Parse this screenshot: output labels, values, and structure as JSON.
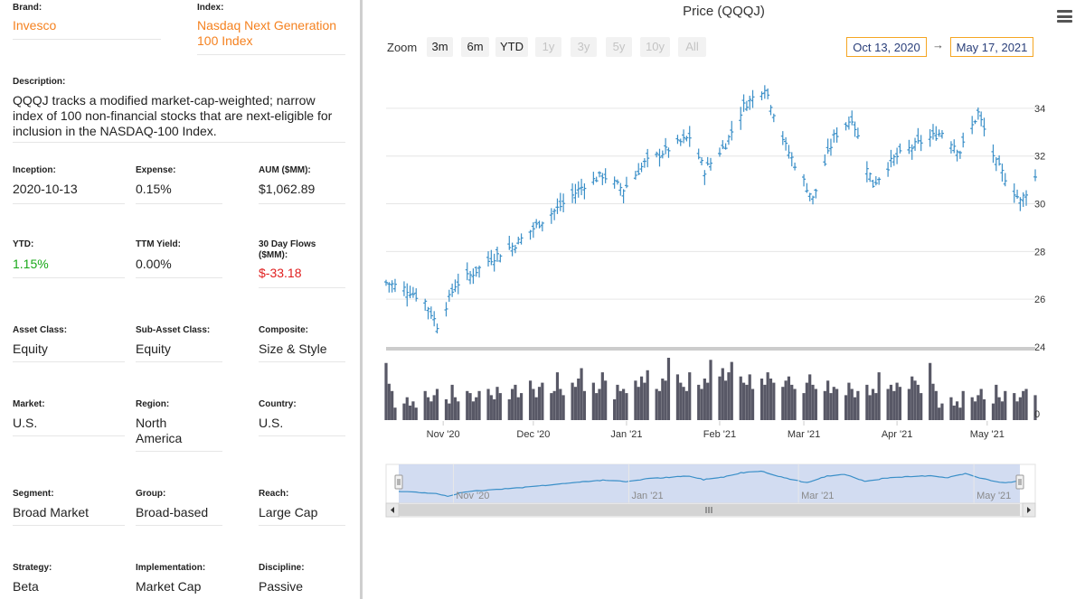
{
  "fund": {
    "brand": {
      "label": "Brand:",
      "value": "Invesco"
    },
    "index": {
      "label": "Index:",
      "value": "Nasdaq Next Generation 100 Index"
    },
    "description": {
      "label": "Description:",
      "value": "QQQJ tracks a modified market-cap-weighted; narrow index of 100 non-financial stocks that are next-eligible for inclusion in the NASDAQ-100 Index."
    },
    "inception": {
      "label": "Inception:",
      "value": "2020-10-13"
    },
    "expense": {
      "label": "Expense:",
      "value": "0.15%"
    },
    "aum": {
      "label": "AUM ($MM):",
      "value": "$1,062.89"
    },
    "ytd": {
      "label": "YTD:",
      "value": "1.15%"
    },
    "ttm_yield": {
      "label": "TTM Yield:",
      "value": "0.00%"
    },
    "flows": {
      "label": "30 Day Flows ($MM):",
      "value": "$-33.18"
    },
    "asset_class": {
      "label": "Asset Class:",
      "value": "Equity"
    },
    "sub_asset_class": {
      "label": "Sub-Asset Class:",
      "value": "Equity"
    },
    "composite": {
      "label": "Composite:",
      "value": "Size & Style"
    },
    "market": {
      "label": "Market:",
      "value": "U.S."
    },
    "region": {
      "label": "Region:",
      "value": "North America"
    },
    "country": {
      "label": "Country:",
      "value": "U.S."
    },
    "segment": {
      "label": "Segment:",
      "value": "Broad Market"
    },
    "group": {
      "label": "Group:",
      "value": "Broad-based"
    },
    "reach": {
      "label": "Reach:",
      "value": "Large Cap"
    },
    "strategy": {
      "label": "Strategy:",
      "value": "Beta"
    },
    "implementation": {
      "label": "Implementation:",
      "value": "Market Cap"
    },
    "discipline": {
      "label": "Discipline:",
      "value": "Passive"
    }
  },
  "toolbar": {
    "zoom_label": "Zoom",
    "buttons": [
      "3m",
      "6m",
      "YTD",
      "1y",
      "3y",
      "5y",
      "10y",
      "All"
    ],
    "date_from": "Oct 13, 2020",
    "arrow": "→",
    "date_to": "May 17, 2021",
    "menu_icon": "hamburger-menu-icon"
  },
  "colors": {
    "price_line": "#3a8fc8",
    "volume_bar": "#585866",
    "navigator_fill": "#cdd8f0",
    "navigator_line": "#3a8fc8",
    "accent_orange": "#f58220",
    "positive_green": "#18a818",
    "negative_red": "#e01e1e"
  },
  "chart_data": {
    "type": "ohlc",
    "title": "Price (QQQJ)",
    "price_axis": {
      "ticks": [
        24,
        26,
        28,
        30,
        32,
        34
      ],
      "ylim": [
        24,
        35.7
      ]
    },
    "volume_axis": {
      "ticks": [
        0
      ]
    },
    "x_ticks": [
      "Nov '20",
      "Dec '20",
      "Jan '21",
      "Feb '21",
      "Mar '21",
      "Apr '21",
      "May '21"
    ],
    "navigator_ticks": [
      "Nov '20",
      "Jan '21",
      "Mar '21",
      "May '21"
    ],
    "price_keypoints": [
      {
        "date": "2020-10-13",
        "close": 26.7
      },
      {
        "date": "2020-10-20",
        "close": 26.4
      },
      {
        "date": "2020-10-26",
        "close": 25.9
      },
      {
        "date": "2020-10-30",
        "close": 24.9
      },
      {
        "date": "2020-11-05",
        "close": 26.6
      },
      {
        "date": "2020-11-10",
        "close": 27.0
      },
      {
        "date": "2020-11-17",
        "close": 27.7
      },
      {
        "date": "2020-11-25",
        "close": 28.3
      },
      {
        "date": "2020-12-04",
        "close": 29.3
      },
      {
        "date": "2020-12-10",
        "close": 29.9
      },
      {
        "date": "2020-12-18",
        "close": 30.8
      },
      {
        "date": "2020-12-24",
        "close": 31.2
      },
      {
        "date": "2020-12-31",
        "close": 30.6
      },
      {
        "date": "2021-01-07",
        "close": 31.7
      },
      {
        "date": "2021-01-15",
        "close": 32.3
      },
      {
        "date": "2021-01-22",
        "close": 32.8
      },
      {
        "date": "2021-01-27",
        "close": 31.4
      },
      {
        "date": "2021-02-03",
        "close": 32.5
      },
      {
        "date": "2021-02-09",
        "close": 34.1
      },
      {
        "date": "2021-02-16",
        "close": 34.9
      },
      {
        "date": "2021-02-23",
        "close": 32.4
      },
      {
        "date": "2021-03-04",
        "close": 30.2
      },
      {
        "date": "2021-03-11",
        "close": 32.8
      },
      {
        "date": "2021-03-17",
        "close": 33.6
      },
      {
        "date": "2021-03-24",
        "close": 30.8
      },
      {
        "date": "2021-03-31",
        "close": 31.9
      },
      {
        "date": "2021-04-09",
        "close": 32.6
      },
      {
        "date": "2021-04-16",
        "close": 33.0
      },
      {
        "date": "2021-04-22",
        "close": 32.2
      },
      {
        "date": "2021-04-28",
        "close": 33.8
      },
      {
        "date": "2021-05-04",
        "close": 31.7
      },
      {
        "date": "2021-05-12",
        "close": 30.1
      },
      {
        "date": "2021-05-17",
        "close": 31.1
      }
    ],
    "volume_relative": [
      0.55,
      0.35,
      0.28,
      0.12,
      0.16,
      0.22,
      0.14,
      0.18,
      0.12,
      0.28,
      0.22,
      0.18,
      0.24,
      0.3,
      0.2,
      0.16,
      0.34,
      0.22,
      0.18,
      0.28,
      0.26,
      0.18,
      0.22,
      0.28,
      0.3,
      0.24,
      0.2,
      0.32,
      0.26,
      0.2,
      0.3,
      0.34,
      0.22,
      0.26,
      0.38,
      0.3,
      0.22,
      0.32,
      0.36,
      0.26,
      0.28,
      0.46,
      0.3,
      0.24,
      0.36,
      0.32,
      0.4,
      0.5,
      0.28,
      0.36,
      0.26,
      0.3,
      0.46,
      0.38,
      0.2,
      0.34,
      0.28,
      0.3,
      0.26,
      0.38,
      0.32,
      0.42,
      0.36,
      0.48,
      0.3,
      0.28,
      0.4,
      0.38,
      0.6,
      0.44,
      0.36,
      0.32,
      0.28,
      0.46,
      0.34,
      0.3,
      0.4,
      0.36,
      0.58,
      0.42,
      0.5,
      0.38,
      0.46,
      0.56,
      0.42,
      0.36,
      0.34,
      0.44,
      0.3,
      0.4,
      0.34,
      0.46,
      0.4,
      0.36,
      0.32,
      0.38,
      0.42,
      0.34,
      0.3,
      0.26,
      0.36,
      0.44,
      0.34,
      0.3,
      0.28,
      0.38,
      0.26,
      0.32,
      0.3,
      0.24,
      0.36,
      0.3,
      0.22,
      0.28,
      0.34,
      0.24,
      0.3,
      0.26,
      0.46,
      0.3,
      0.34,
      0.28,
      0.36,
      0.32,
      0.3,
      0.42,
      0.38,
      0.34,
      0.26
    ]
  }
}
